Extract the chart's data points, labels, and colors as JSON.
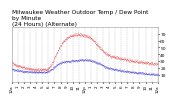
{
  "title": "Milwaukee Weather Outdoor Temp / Dew Point\nby Minute\n(24 Hours) (Alternate)",
  "title_fontsize": 4.2,
  "bg_color": "#ffffff",
  "plot_bg_color": "#ffffff",
  "grid_color": "#aaaaaa",
  "red_color": "#dd0000",
  "blue_color": "#0000cc",
  "tick_color": "#000000",
  "title_color": "#000000",
  "ylim": [
    0,
    80
  ],
  "yticks": [
    10,
    20,
    30,
    40,
    50,
    60,
    70
  ],
  "ytick_labels": [
    "10",
    "20",
    "30",
    "40",
    "50",
    "60",
    "70"
  ],
  "n_points": 1440,
  "temp_curve": [
    28,
    27,
    26,
    25,
    24,
    23,
    23,
    22,
    22,
    21,
    21,
    20,
    20,
    20,
    19,
    19,
    19,
    18,
    18,
    18,
    18,
    18,
    18,
    18,
    18,
    18,
    18,
    18,
    18,
    19,
    20,
    22,
    25,
    28,
    32,
    36,
    40,
    44,
    48,
    51,
    54,
    57,
    59,
    61,
    63,
    64,
    65,
    66,
    67,
    67,
    68,
    68,
    69,
    69,
    69,
    69,
    69,
    68,
    68,
    68,
    67,
    67,
    66,
    65,
    64,
    63,
    61,
    59,
    57,
    55,
    53,
    51,
    49,
    47,
    45,
    43,
    42,
    41,
    40,
    39,
    38,
    37,
    37,
    36,
    36,
    35,
    35,
    34,
    34,
    34,
    33,
    33,
    33,
    32,
    32,
    32,
    31,
    31,
    31,
    30,
    30,
    30,
    30,
    29,
    29,
    29,
    29,
    28,
    28,
    28,
    28,
    28,
    27,
    27,
    27,
    26,
    26,
    26,
    26,
    26
  ],
  "dew_curve": [
    18,
    18,
    17,
    17,
    17,
    16,
    16,
    16,
    16,
    15,
    15,
    15,
    15,
    15,
    15,
    15,
    14,
    14,
    14,
    14,
    14,
    14,
    14,
    14,
    14,
    14,
    14,
    14,
    15,
    15,
    16,
    17,
    18,
    19,
    21,
    22,
    24,
    25,
    26,
    27,
    28,
    28,
    29,
    29,
    30,
    30,
    30,
    30,
    30,
    31,
    31,
    31,
    31,
    31,
    31,
    32,
    32,
    32,
    32,
    32,
    32,
    32,
    32,
    32,
    31,
    31,
    30,
    30,
    29,
    28,
    27,
    27,
    26,
    25,
    24,
    23,
    22,
    21,
    21,
    20,
    20,
    19,
    19,
    18,
    18,
    18,
    17,
    17,
    17,
    16,
    16,
    16,
    16,
    15,
    15,
    15,
    15,
    14,
    14,
    14,
    14,
    14,
    13,
    13,
    13,
    13,
    13,
    12,
    12,
    12,
    12,
    12,
    12,
    11,
    11,
    11,
    11,
    11,
    11,
    11
  ],
  "xtick_labels": [
    "12a",
    "1",
    "2",
    "3",
    "4",
    "5",
    "6",
    "7",
    "8",
    "9",
    "10",
    "11",
    "12p",
    "1",
    "2",
    "3",
    "4",
    "5",
    "6",
    "7",
    "8",
    "9",
    "10",
    "11",
    "12a"
  ],
  "xtick_fontsize": 3.0,
  "ytick_fontsize": 3.2
}
